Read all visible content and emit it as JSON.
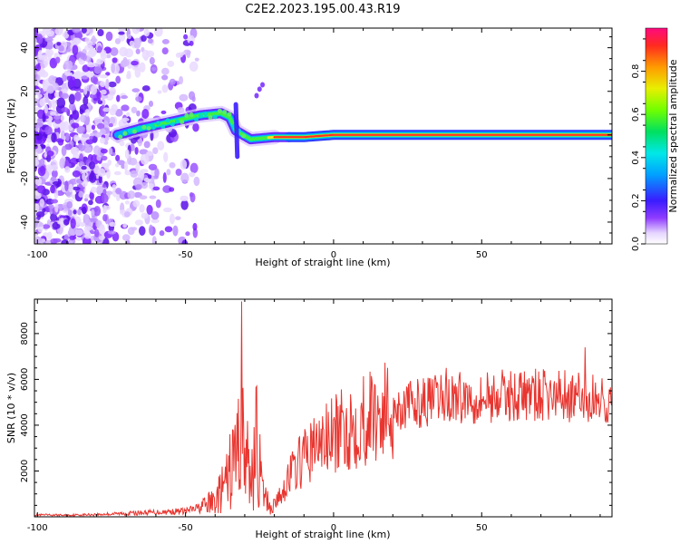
{
  "title": "C2E2.2023.195.00.43.R19",
  "colors": {
    "signal": "#e8352f",
    "axis": "#000000"
  },
  "chart_data": [
    {
      "type": "heatmap",
      "xlabel": "Height of straight line (km)",
      "ylabel": "Frequency (Hz)",
      "xlim": [
        -101,
        94
      ],
      "ylim": [
        -50,
        49
      ],
      "xticks": [
        -100,
        -50,
        0,
        50
      ],
      "yticks": [
        -40,
        -20,
        0,
        20,
        40
      ],
      "colorbar": {
        "label": "Normalized spectral amplitude",
        "range": [
          0,
          1
        ],
        "ticks": [
          "0.0",
          "0.2",
          "0.4",
          "0.6",
          "0.8"
        ],
        "colormap": "rainbow"
      },
      "ridge": {
        "points": [
          [
            -73,
            0
          ],
          [
            -65,
            3
          ],
          [
            -55,
            6
          ],
          [
            -45,
            9
          ],
          [
            -38,
            10
          ],
          [
            -35,
            8
          ],
          [
            -33,
            2
          ],
          [
            -28,
            -2
          ],
          [
            -20,
            -1
          ],
          [
            -10,
            -1
          ],
          [
            0,
            0
          ],
          [
            10,
            0
          ],
          [
            20,
            0
          ],
          [
            94,
            0
          ]
        ]
      }
    },
    {
      "type": "line",
      "xlabel": "Height of straight line (km)",
      "ylabel": "SNR (10 * v/v)",
      "xlim": [
        -101,
        94
      ],
      "ylim": [
        0,
        9500
      ],
      "xticks": [
        -100,
        -50,
        0,
        50
      ],
      "yticks": [
        2000,
        4000,
        6000,
        8000
      ],
      "series": [
        {
          "envelope": [
            [
              -101,
              80
            ],
            [
              -90,
              70
            ],
            [
              -80,
              100
            ],
            [
              -70,
              150
            ],
            [
              -60,
              200
            ],
            [
              -50,
              250
            ],
            [
              -45,
              400
            ],
            [
              -40,
              700
            ],
            [
              -36,
              1500
            ],
            [
              -33,
              2800
            ],
            [
              -31,
              3500
            ],
            [
              -28,
              1600
            ],
            [
              -26,
              3200
            ],
            [
              -24,
              1000
            ],
            [
              -21,
              400
            ],
            [
              -18,
              900
            ],
            [
              -15,
              1800
            ],
            [
              -10,
              2600
            ],
            [
              -5,
              3200
            ],
            [
              0,
              3500
            ],
            [
              5,
              3900
            ],
            [
              10,
              4300
            ],
            [
              20,
              4700
            ],
            [
              30,
              5000
            ],
            [
              40,
              5200
            ],
            [
              50,
              5200
            ],
            [
              60,
              5300
            ],
            [
              70,
              5300
            ],
            [
              80,
              5200
            ],
            [
              94,
              5100
            ]
          ],
          "peaks": [
            [
              -31,
              9400
            ],
            [
              -26,
              5700
            ],
            [
              38,
              6500
            ],
            [
              52,
              6300
            ],
            [
              78,
              6400
            ],
            [
              85,
              7400
            ]
          ]
        }
      ]
    }
  ]
}
